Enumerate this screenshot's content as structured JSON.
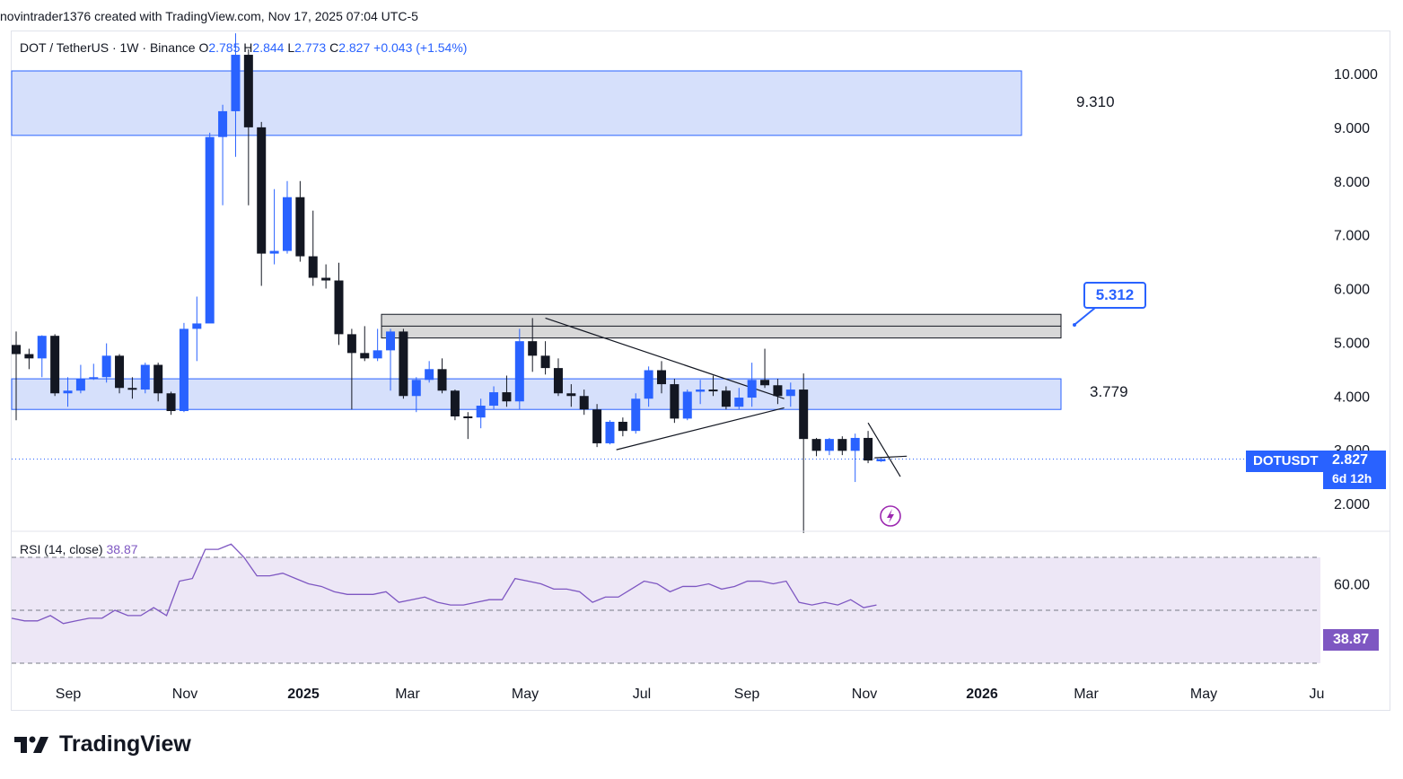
{
  "header": {
    "text": "novintrader1376 created with TradingView.com, Nov 17, 2025 07:04 UTC-5"
  },
  "legend": {
    "symbol": "DOT / TetherUS · 1W · Binance",
    "o_label": "O",
    "o_value": "2.785",
    "h_label": "H",
    "h_value": "2.844",
    "l_label": "L",
    "l_value": "2.773",
    "c_label": "C",
    "c_value": "2.827",
    "change": "+0.043 (+1.54%)"
  },
  "rsi_legend": {
    "label": "RSI (14, close)",
    "value": "38.87"
  },
  "price_tag": {
    "symbol": "DOTUSDT",
    "price": "2.827",
    "countdown": "6d 12h"
  },
  "rsi_tag": {
    "value": "38.87"
  },
  "callout": {
    "value": "5.312"
  },
  "brand": {
    "name": "TradingView"
  },
  "colors": {
    "bull": "#2962ff",
    "bear": "#131722",
    "zone": "#d1ddfb",
    "zone_border": "#2962ff",
    "gray_zone": "#d4d4d4",
    "rsi": "#7e57c2",
    "rsi_band": "#ede7f6"
  },
  "chart_data": {
    "type": "candlestick",
    "price_axis_ticks": [
      "10.000",
      "9.000",
      "8.000",
      "7.000",
      "6.000",
      "5.000",
      "4.000",
      "3.000",
      "2.000"
    ],
    "time_axis_labels": [
      "Sep",
      "Nov",
      "2025",
      "Mar",
      "May",
      "Jul",
      "Sep",
      "Nov",
      "2026",
      "Mar",
      "May",
      "Ju"
    ],
    "rsi_axis_ticks": [
      "60.00"
    ],
    "rsi_levels": [
      70,
      50,
      30
    ],
    "zones": [
      {
        "name": "upper-zone",
        "top": 10.05,
        "bottom": 8.85,
        "label": "9.310"
      },
      {
        "name": "gray-zone",
        "top": 5.52,
        "bottom": 5.08,
        "label": ""
      },
      {
        "name": "mid-zone",
        "top": 4.32,
        "bottom": 3.75,
        "label": "3.779"
      }
    ],
    "current_price": 2.827,
    "candles": [
      [
        4.95,
        4.78,
        5.2,
        3.55
      ],
      [
        4.78,
        4.7,
        4.88,
        4.5
      ],
      [
        4.7,
        5.12,
        5.13,
        4.35
      ],
      [
        5.12,
        4.05,
        5.15,
        4.0
      ],
      [
        4.05,
        4.1,
        4.35,
        3.8
      ],
      [
        4.1,
        4.32,
        4.58,
        4.05
      ],
      [
        4.32,
        4.35,
        4.6,
        4.3
      ],
      [
        4.35,
        4.75,
        4.98,
        4.25
      ],
      [
        4.75,
        4.15,
        4.78,
        4.05
      ],
      [
        4.15,
        4.12,
        4.35,
        3.95
      ],
      [
        4.12,
        4.58,
        4.62,
        4.05
      ],
      [
        4.58,
        4.05,
        4.62,
        3.9
      ],
      [
        4.05,
        3.72,
        4.08,
        3.65
      ],
      [
        3.72,
        5.25,
        5.36,
        3.7
      ],
      [
        5.25,
        5.35,
        5.85,
        4.65
      ],
      [
        5.35,
        8.82,
        8.9,
        5.38
      ],
      [
        8.82,
        9.3,
        9.42,
        7.55
      ],
      [
        9.3,
        10.35,
        10.75,
        8.45
      ],
      [
        10.35,
        9.0,
        10.45,
        7.55
      ],
      [
        9.0,
        6.65,
        9.1,
        6.05
      ],
      [
        6.65,
        6.7,
        7.85,
        6.45
      ],
      [
        6.7,
        7.7,
        8.0,
        6.65
      ],
      [
        7.7,
        6.6,
        8.0,
        6.5
      ],
      [
        6.6,
        6.2,
        7.45,
        6.05
      ],
      [
        6.2,
        6.15,
        6.45,
        6.0
      ],
      [
        6.15,
        5.15,
        6.48,
        4.95
      ],
      [
        5.15,
        4.8,
        5.25,
        3.75
      ],
      [
        4.8,
        4.7,
        5.3,
        4.65
      ],
      [
        4.7,
        4.85,
        5.25,
        4.65
      ],
      [
        4.85,
        5.2,
        5.25,
        4.1
      ],
      [
        5.2,
        4.0,
        5.25,
        3.95
      ],
      [
        4.0,
        4.3,
        4.35,
        3.7
      ],
      [
        4.3,
        4.5,
        4.65,
        4.25
      ],
      [
        4.5,
        4.1,
        4.7,
        4.05
      ],
      [
        4.1,
        3.62,
        4.12,
        3.55
      ],
      [
        3.62,
        3.6,
        3.7,
        3.2
      ],
      [
        3.6,
        3.82,
        3.95,
        3.4
      ],
      [
        3.82,
        4.07,
        4.18,
        3.75
      ],
      [
        4.07,
        3.9,
        4.38,
        3.8
      ],
      [
        3.9,
        5.02,
        5.25,
        3.75
      ],
      [
        5.02,
        4.75,
        5.45,
        4.45
      ],
      [
        4.75,
        4.52,
        5.02,
        4.4
      ],
      [
        4.52,
        4.05,
        4.7,
        4.0
      ],
      [
        4.05,
        4.0,
        4.22,
        3.8
      ],
      [
        4.0,
        3.75,
        4.12,
        3.65
      ],
      [
        3.75,
        3.12,
        3.85,
        3.05
      ],
      [
        3.12,
        3.52,
        3.55,
        3.1
      ],
      [
        3.52,
        3.35,
        3.6,
        3.25
      ],
      [
        3.35,
        3.95,
        4.05,
        3.3
      ],
      [
        3.95,
        4.48,
        4.55,
        3.8
      ],
      [
        4.48,
        4.22,
        4.65,
        4.05
      ],
      [
        4.22,
        3.58,
        4.32,
        3.5
      ],
      [
        3.58,
        4.08,
        4.12,
        3.55
      ],
      [
        4.08,
        4.12,
        4.3,
        3.85
      ],
      [
        4.12,
        4.1,
        4.38,
        4.0
      ],
      [
        4.1,
        3.8,
        4.18,
        3.75
      ],
      [
        3.8,
        3.97,
        4.15,
        3.75
      ],
      [
        3.97,
        4.3,
        4.62,
        3.8
      ],
      [
        4.3,
        4.2,
        4.88,
        4.15
      ],
      [
        4.2,
        4.0,
        4.32,
        3.85
      ],
      [
        4.0,
        4.12,
        4.25,
        3.8
      ],
      [
        4.12,
        3.2,
        4.42,
        1.45
      ],
      [
        3.2,
        2.98,
        3.22,
        2.88
      ],
      [
        2.98,
        3.2,
        3.22,
        2.9
      ],
      [
        3.2,
        2.98,
        3.25,
        2.9
      ],
      [
        2.98,
        3.22,
        3.3,
        2.4
      ],
      [
        3.22,
        2.8,
        3.35,
        2.75
      ],
      [
        2.785,
        2.827,
        2.844,
        2.773
      ]
    ],
    "rsi": [
      47,
      46,
      46,
      48,
      45,
      46,
      47,
      47,
      50,
      48,
      48,
      51,
      48,
      61,
      62,
      73,
      73,
      75,
      70,
      63,
      63,
      64,
      62,
      60,
      59,
      57,
      56,
      56,
      56,
      57,
      53,
      54,
      55,
      53,
      52,
      52,
      53,
      54,
      54,
      62,
      61,
      60,
      58,
      58,
      57,
      53,
      55,
      55,
      58,
      61,
      60,
      57,
      59,
      59,
      60,
      58,
      59,
      61,
      61,
      60,
      61,
      53,
      52,
      53,
      52,
      54,
      51,
      52
    ]
  }
}
